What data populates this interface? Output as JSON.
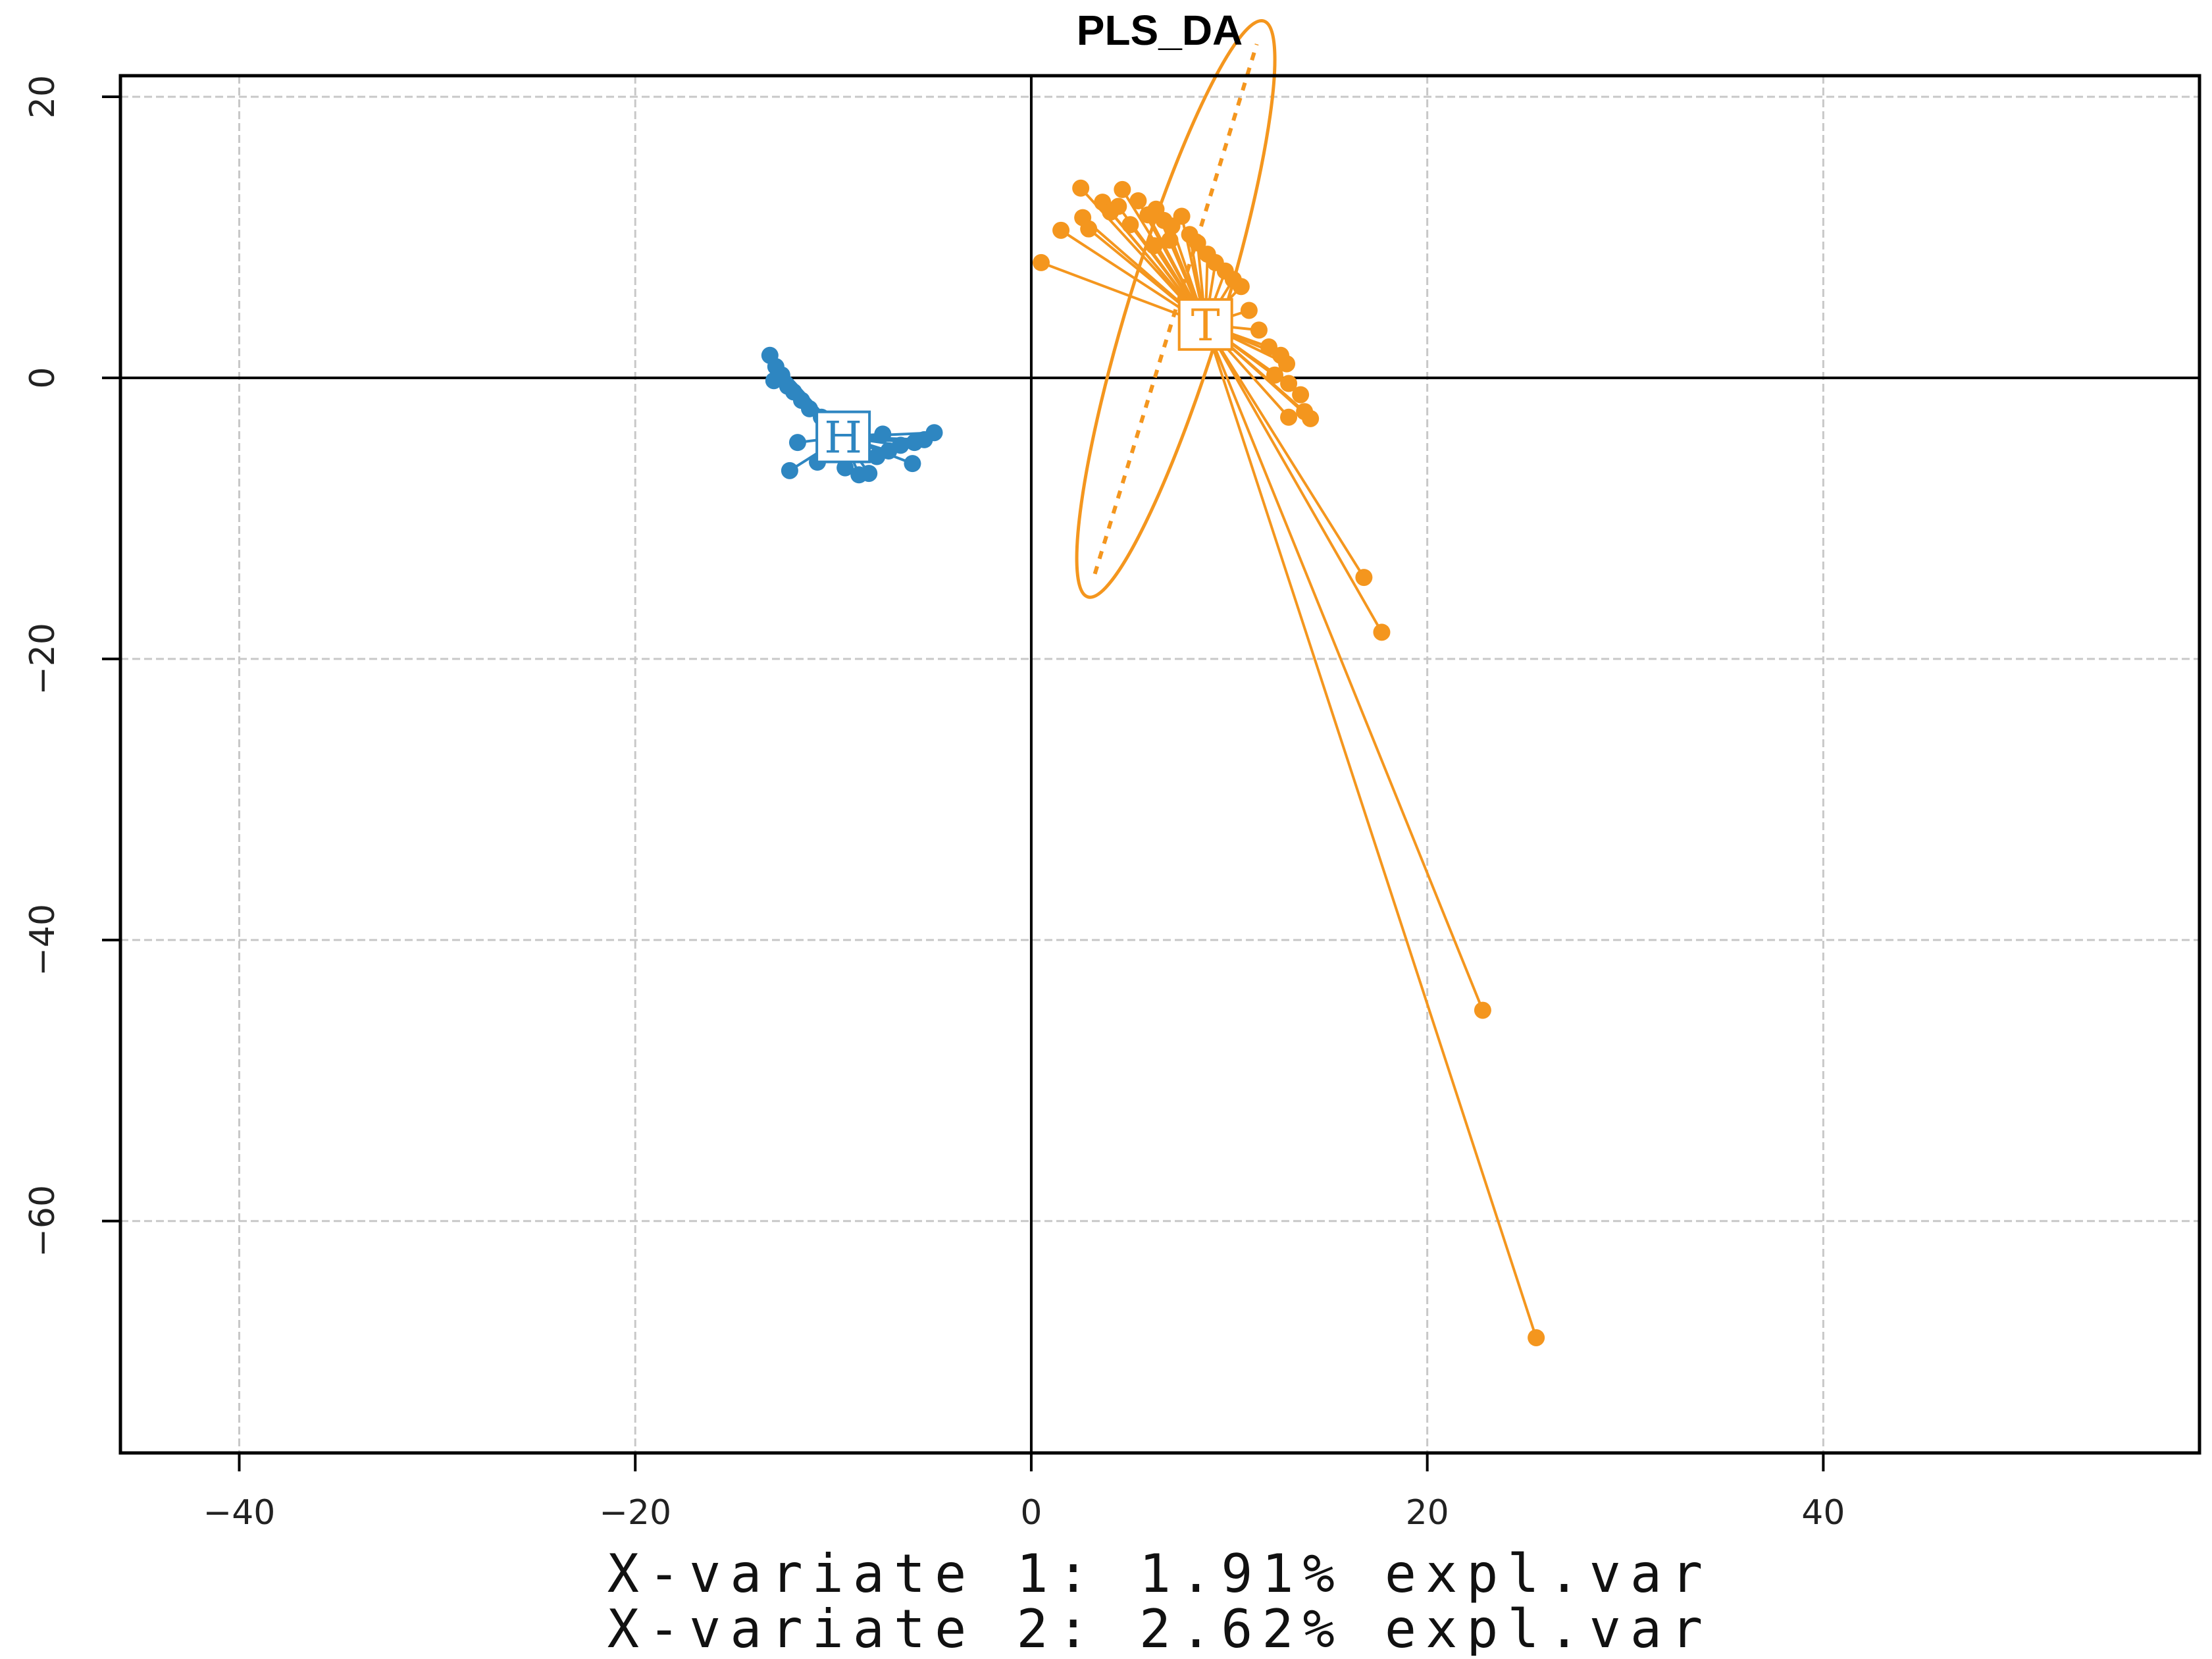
{
  "chart_data": {
    "type": "scatter",
    "title": "PLS_DA",
    "xlabel": "X-variate 1: 1.91% expl.var",
    "ylabel": "X-variate 2: 2.62% expl.var",
    "xlim": [
      -46,
      59
    ],
    "ylim": [
      -76.5,
      21.5
    ],
    "x_ticks": [
      -40,
      -20,
      0,
      20,
      40
    ],
    "x_tick_labels": [
      "−40",
      "−20",
      "0",
      "20",
      "40"
    ],
    "y_ticks": [
      20,
      0,
      -20,
      -40,
      -60
    ],
    "y_tick_labels": [
      "20",
      "0",
      "−20",
      "−40",
      "−60"
    ],
    "grid": true,
    "reference_lines": {
      "x": 0,
      "y": 0
    },
    "series": [
      {
        "name": "H",
        "color": "#2e86c1",
        "centroid": {
          "x": -9.5,
          "y": -4.2
        },
        "points": [
          {
            "x": -13.2,
            "y": 1.6
          },
          {
            "x": -12.9,
            "y": 0.8
          },
          {
            "x": -12.6,
            "y": 0.2
          },
          {
            "x": -13.0,
            "y": -0.2
          },
          {
            "x": -12.3,
            "y": -0.6
          },
          {
            "x": -12.0,
            "y": -1.0
          },
          {
            "x": -11.6,
            "y": -1.6
          },
          {
            "x": -11.2,
            "y": -2.2
          },
          {
            "x": -10.6,
            "y": -2.8
          },
          {
            "x": -10.2,
            "y": -3.2
          },
          {
            "x": -11.8,
            "y": -4.6
          },
          {
            "x": -12.2,
            "y": -6.6
          },
          {
            "x": -10.8,
            "y": -6.0
          },
          {
            "x": -9.4,
            "y": -6.4
          },
          {
            "x": -8.7,
            "y": -6.9
          },
          {
            "x": -8.2,
            "y": -6.8
          },
          {
            "x": -7.8,
            "y": -5.6
          },
          {
            "x": -7.2,
            "y": -5.2
          },
          {
            "x": -6.6,
            "y": -4.8
          },
          {
            "x": -5.9,
            "y": -4.6
          },
          {
            "x": -5.4,
            "y": -4.4
          },
          {
            "x": -4.9,
            "y": -3.9
          },
          {
            "x": -6.0,
            "y": -6.1
          },
          {
            "x": -7.5,
            "y": -4.0
          },
          {
            "x": -8.6,
            "y": -3.6
          },
          {
            "x": -9.0,
            "y": -5.2
          }
        ]
      },
      {
        "name": "T",
        "color": "#f4961e",
        "centroid": {
          "x": 8.8,
          "y": 3.8
        },
        "ellipse": {
          "cx": 7.3,
          "cy": 4.9,
          "rx": 15.2,
          "ry": 2.4,
          "angle": -73
        },
        "points": [
          {
            "x": 0.5,
            "y": 8.2
          },
          {
            "x": 1.5,
            "y": 10.5
          },
          {
            "x": 2.5,
            "y": 13.5
          },
          {
            "x": 2.6,
            "y": 11.4
          },
          {
            "x": 2.9,
            "y": 10.6
          },
          {
            "x": 3.6,
            "y": 12.5
          },
          {
            "x": 4.0,
            "y": 11.8
          },
          {
            "x": 4.4,
            "y": 12.2
          },
          {
            "x": 4.6,
            "y": 13.4
          },
          {
            "x": 5.0,
            "y": 10.9
          },
          {
            "x": 5.4,
            "y": 12.6
          },
          {
            "x": 5.9,
            "y": 11.6
          },
          {
            "x": 6.3,
            "y": 12.0
          },
          {
            "x": 6.7,
            "y": 11.2
          },
          {
            "x": 7.1,
            "y": 10.8
          },
          {
            "x": 7.6,
            "y": 11.5
          },
          {
            "x": 8.0,
            "y": 10.2
          },
          {
            "x": 8.4,
            "y": 9.6
          },
          {
            "x": 8.9,
            "y": 8.8
          },
          {
            "x": 9.3,
            "y": 8.2
          },
          {
            "x": 9.8,
            "y": 7.6
          },
          {
            "x": 10.2,
            "y": 7.0
          },
          {
            "x": 10.6,
            "y": 6.5
          },
          {
            "x": 6.2,
            "y": 9.4
          },
          {
            "x": 7.0,
            "y": 9.8
          },
          {
            "x": 11.0,
            "y": 4.8
          },
          {
            "x": 11.5,
            "y": 3.4
          },
          {
            "x": 12.0,
            "y": 2.2
          },
          {
            "x": 12.6,
            "y": 1.6
          },
          {
            "x": 12.9,
            "y": 1.0
          },
          {
            "x": 12.3,
            "y": 0.2
          },
          {
            "x": 13.0,
            "y": -0.4
          },
          {
            "x": 13.6,
            "y": -1.2
          },
          {
            "x": 13.8,
            "y": -2.4
          },
          {
            "x": 13.0,
            "y": -2.8
          },
          {
            "x": 14.1,
            "y": -2.9
          },
          {
            "x": 16.8,
            "y": -14.2
          },
          {
            "x": 17.7,
            "y": -18.1
          },
          {
            "x": 22.8,
            "y": -45.0
          },
          {
            "x": 25.5,
            "y": -68.3
          }
        ]
      }
    ]
  }
}
